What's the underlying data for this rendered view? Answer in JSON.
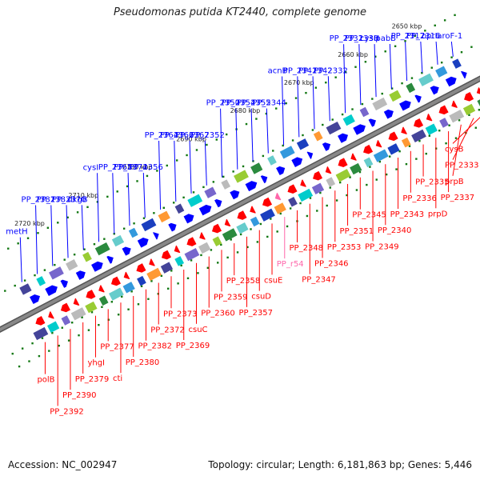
{
  "title": "Pseudomonas putida KT2440, complete genome",
  "footer": {
    "accession": "Accession: NC_002947",
    "topology": "Topology: circular; Length: 6,181,863 bp; Genes: 5,446"
  },
  "colors": {
    "forward": "#0000ff",
    "reverse": "#ff0000",
    "rna": "#ff66aa",
    "backbone": "#888888",
    "ticks": "#117711"
  },
  "scale": {
    "tick_labels": [
      "2650 kbp",
      "2660 kbp",
      "2670 kbp",
      "2680 kbp",
      "2690 kbp",
      "2700 kbp",
      "2710 kbp",
      "2720 kbp"
    ]
  },
  "genes": [
    {
      "name": "aroF-1",
      "strand": "forward"
    },
    {
      "name": "oprI",
      "strand": "forward"
    },
    {
      "name": "PP_2316",
      "strand": "forward"
    },
    {
      "name": "PP_2317",
      "strand": "forward"
    },
    {
      "name": "pabB",
      "strand": "forward"
    },
    {
      "name": "cysH",
      "strand": "forward"
    },
    {
      "name": "PP_2330",
      "strand": "forward"
    },
    {
      "name": "PP_2331",
      "strand": "forward"
    },
    {
      "name": "PP_2332",
      "strand": "forward"
    },
    {
      "name": "PP_2342",
      "strand": "forward"
    },
    {
      "name": "PP_2341",
      "strand": "forward"
    },
    {
      "name": "acnB",
      "strand": "forward"
    },
    {
      "name": "PP_2344",
      "strand": "forward"
    },
    {
      "name": "PP_2355",
      "strand": "forward"
    },
    {
      "name": "PP_2354",
      "strand": "forward"
    },
    {
      "name": "PP_2350",
      "strand": "forward"
    },
    {
      "name": "PP_2352",
      "strand": "forward"
    },
    {
      "name": "PP_2367",
      "strand": "forward"
    },
    {
      "name": "PP_2366",
      "strand": "forward"
    },
    {
      "name": "PP_2364",
      "strand": "forward"
    },
    {
      "name": "PP_2356",
      "strand": "forward"
    },
    {
      "name": "PP_2374",
      "strand": "forward"
    },
    {
      "name": "PP_2365",
      "strand": "forward"
    },
    {
      "name": "cysI",
      "strand": "forward"
    },
    {
      "name": "dkgB",
      "strand": "forward"
    },
    {
      "name": "PP_2370",
      "strand": "forward"
    },
    {
      "name": "PP_2383",
      "strand": "forward"
    },
    {
      "name": "PP_2381",
      "strand": "forward"
    },
    {
      "name": "metH",
      "strand": "forward"
    },
    {
      "name": "cysB",
      "strand": "reverse"
    },
    {
      "name": "PP_2333",
      "strand": "reverse"
    },
    {
      "name": "prpB",
      "strand": "reverse"
    },
    {
      "name": "PP_2337",
      "strand": "reverse"
    },
    {
      "name": "prpD",
      "strand": "reverse"
    },
    {
      "name": "PP_2335",
      "strand": "reverse"
    },
    {
      "name": "PP_2336",
      "strand": "reverse"
    },
    {
      "name": "PP_2343",
      "strand": "reverse"
    },
    {
      "name": "PP_2340",
      "strand": "reverse"
    },
    {
      "name": "PP_2349",
      "strand": "reverse"
    },
    {
      "name": "PP_2345",
      "strand": "reverse"
    },
    {
      "name": "PP_2351",
      "strand": "reverse"
    },
    {
      "name": "PP_2353",
      "strand": "reverse"
    },
    {
      "name": "PP_2346",
      "strand": "reverse"
    },
    {
      "name": "PP_2347",
      "strand": "reverse"
    },
    {
      "name": "PP_2348",
      "strand": "reverse"
    },
    {
      "name": "PP_r54",
      "strand": "rna"
    },
    {
      "name": "csuE",
      "strand": "reverse"
    },
    {
      "name": "csuD",
      "strand": "reverse"
    },
    {
      "name": "PP_2357",
      "strand": "reverse"
    },
    {
      "name": "PP_2358",
      "strand": "reverse"
    },
    {
      "name": "PP_2359",
      "strand": "reverse"
    },
    {
      "name": "PP_2360",
      "strand": "reverse"
    },
    {
      "name": "csuC",
      "strand": "reverse"
    },
    {
      "name": "PP_2369",
      "strand": "reverse"
    },
    {
      "name": "PP_2373",
      "strand": "reverse"
    },
    {
      "name": "PP_2372",
      "strand": "reverse"
    },
    {
      "name": "PP_2382",
      "strand": "reverse"
    },
    {
      "name": "PP_2380",
      "strand": "reverse"
    },
    {
      "name": "cti",
      "strand": "reverse"
    },
    {
      "name": "PP_2377",
      "strand": "reverse"
    },
    {
      "name": "yhgI",
      "strand": "reverse"
    },
    {
      "name": "PP_2379",
      "strand": "reverse"
    },
    {
      "name": "PP_2390",
      "strand": "reverse"
    },
    {
      "name": "PP_2392",
      "strand": "reverse"
    },
    {
      "name": "polB",
      "strand": "reverse"
    }
  ]
}
